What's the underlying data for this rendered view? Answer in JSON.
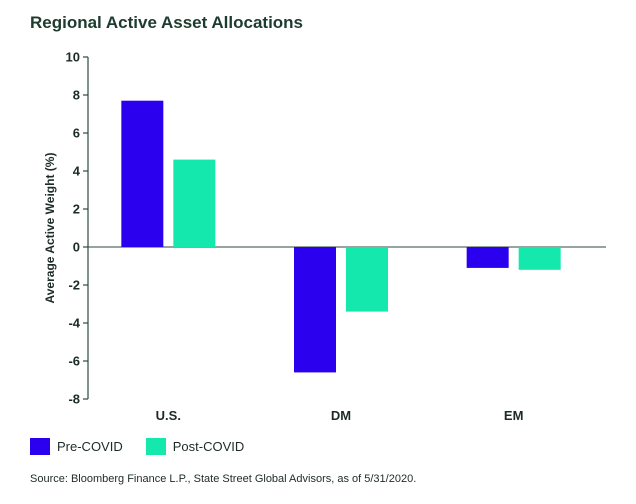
{
  "title": "Regional Active Asset Allocations",
  "source": "Source: Bloomberg Finance L.P., State Street Global Advisors, as of 5/31/2020.",
  "colors": {
    "pre": "#2b00ee",
    "post": "#14e8ad",
    "axis": "#2d4a3c"
  },
  "chart_data": {
    "type": "bar",
    "title": "Regional Active Asset Allocations",
    "xlabel": "",
    "ylabel": "Average Active Weight (%)",
    "categories": [
      "U.S.",
      "DM",
      "EM"
    ],
    "ylim": [
      -8,
      10
    ],
    "yticks": [
      10,
      8,
      6,
      4,
      2,
      0,
      -2,
      -4,
      -6,
      -8
    ],
    "series": [
      {
        "name": "Pre-COVID",
        "values": [
          7.7,
          -6.6,
          -1.1
        ]
      },
      {
        "name": "Post-COVID",
        "values": [
          4.6,
          -3.4,
          -1.2
        ]
      }
    ],
    "legend": "bottom-left",
    "grid": false
  }
}
